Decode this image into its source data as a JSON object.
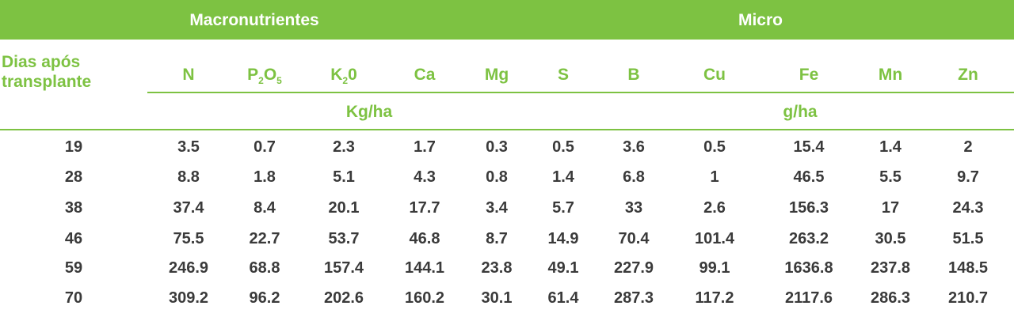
{
  "header": {
    "macro_title": "Macronutrientes",
    "micro_title": "Micro"
  },
  "row_header": {
    "line1": "Dias após",
    "line2": "transplante"
  },
  "columns": [
    {
      "base": "N",
      "sub1": "",
      "mid": "",
      "sub2": ""
    },
    {
      "base": "P",
      "sub1": "2",
      "mid": "O",
      "sub2": "5"
    },
    {
      "base": "K",
      "sub1": "2",
      "mid": "0",
      "sub2": ""
    },
    {
      "base": "Ca",
      "sub1": "",
      "mid": "",
      "sub2": ""
    },
    {
      "base": "Mg",
      "sub1": "",
      "mid": "",
      "sub2": ""
    },
    {
      "base": "S",
      "sub1": "",
      "mid": "",
      "sub2": ""
    },
    {
      "base": "B",
      "sub1": "",
      "mid": "",
      "sub2": ""
    },
    {
      "base": "Cu",
      "sub1": "",
      "mid": "",
      "sub2": ""
    },
    {
      "base": "Fe",
      "sub1": "",
      "mid": "",
      "sub2": ""
    },
    {
      "base": "Mn",
      "sub1": "",
      "mid": "",
      "sub2": ""
    },
    {
      "base": "Zn",
      "sub1": "",
      "mid": "",
      "sub2": ""
    }
  ],
  "units": {
    "macro": "Kg/ha",
    "micro": "g/ha"
  },
  "rows": [
    [
      "19",
      "3.5",
      "0.7",
      "2.3",
      "1.7",
      "0.3",
      "0.5",
      "3.6",
      "0.5",
      "15.4",
      "1.4",
      "2"
    ],
    [
      "28",
      "8.8",
      "1.8",
      "5.1",
      "4.3",
      "0.8",
      "1.4",
      "6.8",
      "1",
      "46.5",
      "5.5",
      "9.7"
    ],
    [
      "38",
      "37.4",
      "8.4",
      "20.1",
      "17.7",
      "3.4",
      "5.7",
      "33",
      "2.6",
      "156.3",
      "17",
      "24.3"
    ],
    [
      "46",
      "75.5",
      "22.7",
      "53.7",
      "46.8",
      "8.7",
      "14.9",
      "70.4",
      "101.4",
      "263.2",
      "30.5",
      "51.5"
    ],
    [
      "59",
      "246.9",
      "68.8",
      "157.4",
      "144.1",
      "23.8",
      "49.1",
      "227.9",
      "99.1",
      "1636.8",
      "237.8",
      "148.5"
    ],
    [
      "70",
      "309.2",
      "96.2",
      "202.6",
      "160.2",
      "30.1",
      "61.4",
      "287.3",
      "117.2",
      "2117.6",
      "286.3",
      "210.7"
    ]
  ],
  "colors": {
    "accent": "#7dc242",
    "text": "#3a3a3a",
    "background": "#ffffff"
  }
}
